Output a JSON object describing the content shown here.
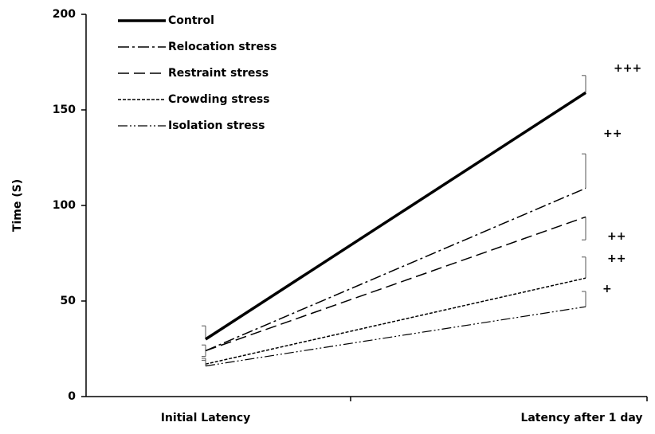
{
  "chart_data": {
    "type": "line",
    "y_label": "Time (S)",
    "categories": [
      "Initial Latency",
      "Latency after 1 day"
    ],
    "ylim": [
      0,
      200
    ],
    "yticks": [
      0,
      50,
      100,
      150,
      200
    ],
    "legend": "top-left",
    "series": [
      {
        "name": "Control",
        "color": "#000000",
        "style": "solid-thick",
        "values": [
          30,
          159
        ],
        "errors": [
          7,
          9
        ],
        "error_direction": "up",
        "annotation": "+++"
      },
      {
        "name": "Relocation stress",
        "color": "#000000",
        "style": "dash-dot",
        "values": [
          24,
          109
        ],
        "errors": [
          3,
          18
        ],
        "error_direction": "up",
        "annotation": "++"
      },
      {
        "name": "Restraint stress",
        "color": "#000000",
        "style": "long-dash",
        "values": [
          24,
          94
        ],
        "errors": [
          3,
          12
        ],
        "error_direction": "down",
        "annotation": "++"
      },
      {
        "name": "Crowding stress",
        "color": "#000000",
        "style": "short-dash",
        "values": [
          17,
          62
        ],
        "errors": [
          3,
          11
        ],
        "error_direction": "up",
        "annotation": "++"
      },
      {
        "name": "Isolation stress",
        "color": "#000000",
        "style": "dash-dot-dot",
        "values": [
          16,
          47
        ],
        "errors": [
          3,
          8
        ],
        "error_direction": "up",
        "annotation": "+"
      }
    ]
  }
}
